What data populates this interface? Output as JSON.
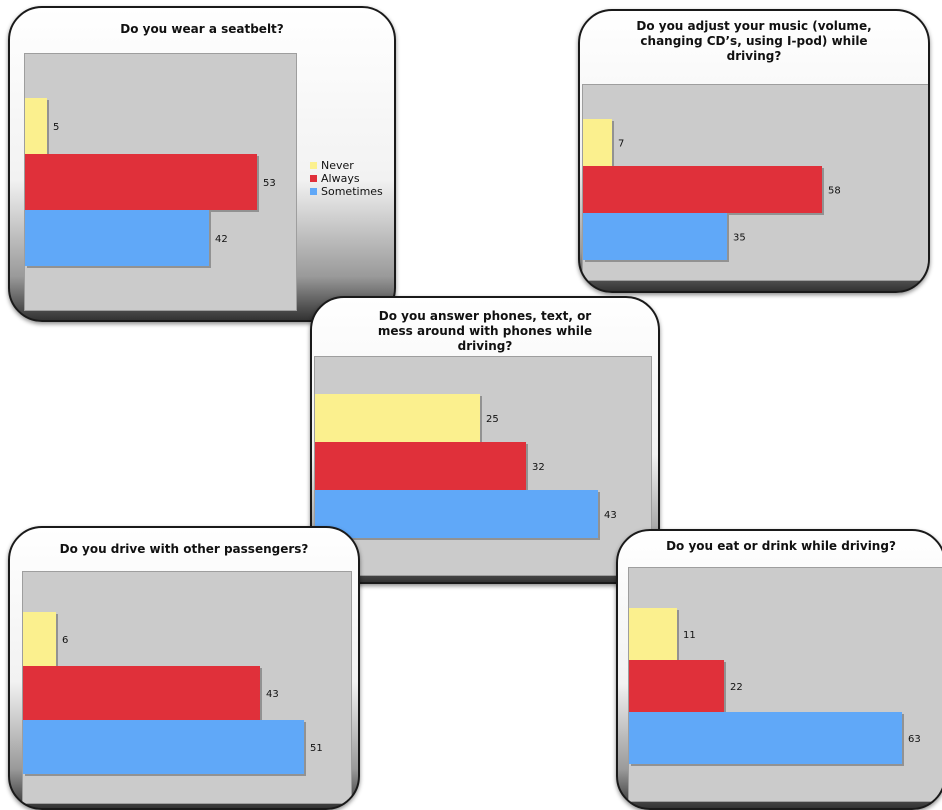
{
  "colors": {
    "never": "#fbf08e",
    "always": "#e0303a",
    "sometimes": "#60a8f8"
  },
  "legend": {
    "items": [
      "Never",
      "Always",
      "Sometimes"
    ]
  },
  "chart_data": [
    {
      "type": "bar",
      "orientation": "horizontal",
      "title": "Do you wear a seatbelt?",
      "categories": [
        "Never",
        "Always",
        "Sometimes"
      ],
      "values": [
        5,
        53,
        42
      ],
      "xlim": [
        0,
        62
      ],
      "grid": false,
      "legend_position": "right"
    },
    {
      "type": "bar",
      "orientation": "horizontal",
      "title": "Do you adjust your music (volume, changing CD’s, using I-pod) while driving?",
      "categories": [
        "Never",
        "Always",
        "Sometimes"
      ],
      "values": [
        7,
        58,
        35
      ],
      "xlim": [
        0,
        84
      ],
      "grid": false
    },
    {
      "type": "bar",
      "orientation": "horizontal",
      "title": "Do you answer phones, text, or mess around with phones while driving?",
      "categories": [
        "Never",
        "Always",
        "Sometimes"
      ],
      "values": [
        25,
        32,
        43
      ],
      "xlim": [
        0,
        51
      ],
      "grid": false
    },
    {
      "type": "bar",
      "orientation": "horizontal",
      "title": "Do you drive with other passengers?",
      "categories": [
        "Never",
        "Always",
        "Sometimes"
      ],
      "values": [
        6,
        43,
        51
      ],
      "xlim": [
        0,
        59.5
      ],
      "grid": false
    },
    {
      "type": "bar",
      "orientation": "horizontal",
      "title": "Do you eat or drink while driving?",
      "categories": [
        "Never",
        "Always",
        "Sometimes"
      ],
      "values": [
        11,
        22,
        63
      ],
      "xlim": [
        0,
        73
      ],
      "grid": false
    }
  ]
}
